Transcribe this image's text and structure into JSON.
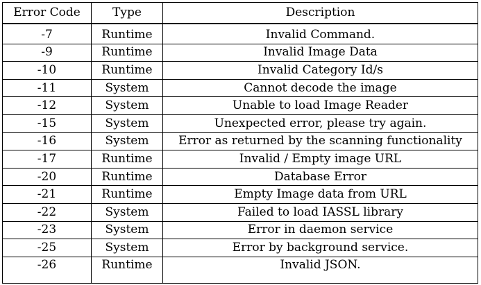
{
  "table": {
    "headers": {
      "code": "Error Code",
      "type": "Type",
      "description": "Description"
    },
    "rows": [
      {
        "code": "-7",
        "type": "Runtime",
        "description": "Invalid Command."
      },
      {
        "code": "-9",
        "type": "Runtime",
        "description": "Invalid Image Data"
      },
      {
        "code": "-10",
        "type": "Runtime",
        "description": "Invalid Category Id/s"
      },
      {
        "code": "-11",
        "type": "System",
        "description": "Cannot decode the image"
      },
      {
        "code": "-12",
        "type": "System",
        "description": "Unable to load Image Reader"
      },
      {
        "code": "-15",
        "type": "System",
        "description": "Unexpected error, please try again."
      },
      {
        "code": "-16",
        "type": "System",
        "description": "Error as returned by the scanning functionality"
      },
      {
        "code": "-17",
        "type": "Runtime",
        "description": "Invalid / Empty image URL"
      },
      {
        "code": "-20",
        "type": "Runtime",
        "description": "Database Error"
      },
      {
        "code": "-21",
        "type": "Runtime",
        "description": "Empty Image data from URL"
      },
      {
        "code": "-22",
        "type": "System",
        "description": "Failed to load IASSL library"
      },
      {
        "code": "-23",
        "type": "System",
        "description": "Error in daemon service"
      },
      {
        "code": "-25",
        "type": "System",
        "description": "Error by background service."
      },
      {
        "code": "-26",
        "type": "Runtime",
        "description": "Invalid JSON."
      }
    ]
  }
}
